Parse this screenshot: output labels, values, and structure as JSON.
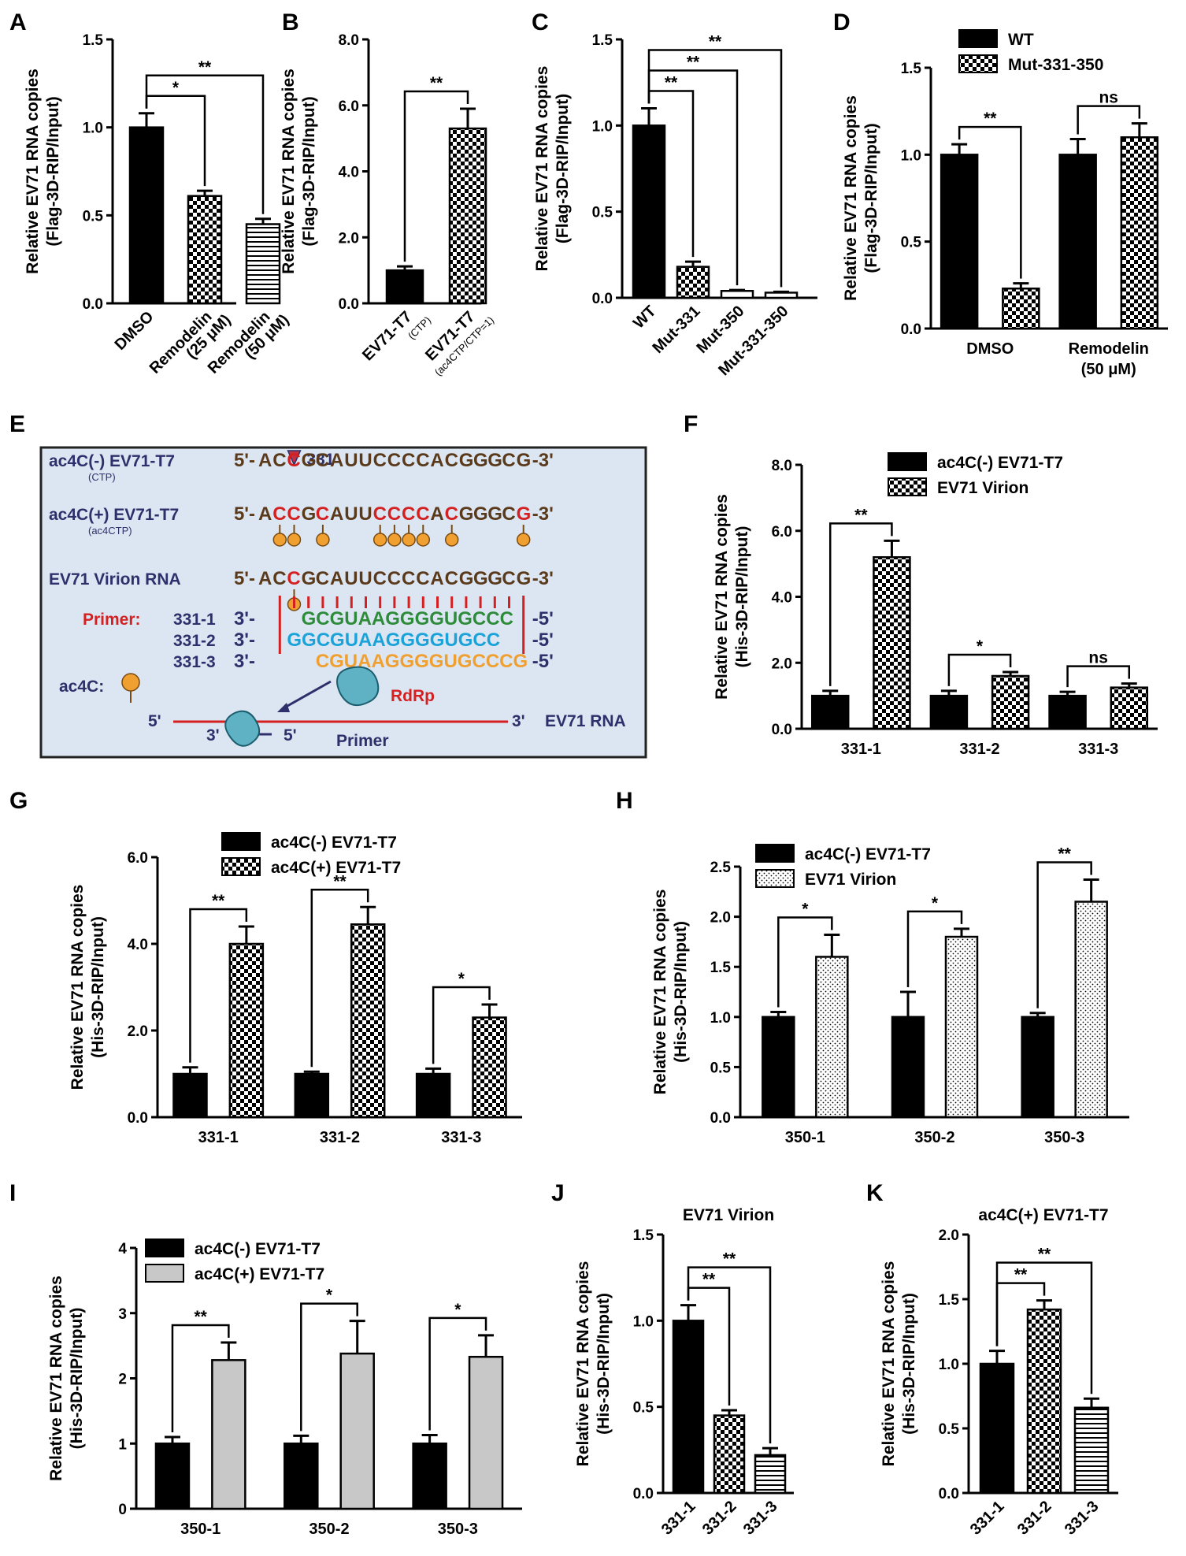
{
  "colors": {
    "solid": "#000000",
    "gray": "#c8c8c8",
    "schematic_bg": "#dbe6f2",
    "red": "#d42020",
    "green": "#2e8b3a",
    "blue": "#1ba3d9",
    "orange": "#f0a030",
    "navy": "#2f2f6b",
    "brown": "#5a3a1a"
  },
  "chart_data": [
    {
      "id": "A",
      "type": "bar",
      "ylabel": [
        "Relative EV71 RNA copies",
        "(Flag-3D-RIP/Input)"
      ],
      "ylim": [
        0,
        1.5
      ],
      "yticks": [
        "0.0",
        "0.5",
        "1.0",
        "1.5"
      ],
      "categories": [
        [
          "DMSO"
        ],
        [
          "Remodelin",
          "(25 μM)"
        ],
        [
          "Remodelin",
          "(50 μM)"
        ]
      ],
      "x_rotated": true,
      "values": [
        1.0,
        0.61,
        0.45
      ],
      "errors": [
        0.08,
        0.03,
        0.03
      ],
      "patterns": [
        "solid",
        "check",
        "hline"
      ],
      "significance": [
        {
          "from": 0,
          "to": 1,
          "label": "*"
        },
        {
          "from": 0,
          "to": 2,
          "label": "**"
        }
      ]
    },
    {
      "id": "B",
      "type": "bar",
      "ylabel": [
        "Relative EV71 RNA copies",
        "(Flag-3D-RIP/Input)"
      ],
      "ylim": [
        0,
        8
      ],
      "yticks": [
        "0.0",
        "2.0",
        "4.0",
        "6.0",
        "8.0"
      ],
      "categories": [
        [
          "EV71-T7",
          "(CTP)"
        ],
        [
          "EV71-T7",
          "(ac4CTP/CTP=1)"
        ]
      ],
      "x_rotated": true,
      "values": [
        1.0,
        5.3
      ],
      "errors": [
        0.12,
        0.6
      ],
      "patterns": [
        "solid",
        "check"
      ],
      "significance": [
        {
          "from": 0,
          "to": 1,
          "label": "**"
        }
      ]
    },
    {
      "id": "C",
      "type": "bar",
      "ylabel": [
        "Relative EV71 RNA copies",
        "(Flag-3D-RIP/Input)"
      ],
      "ylim": [
        0,
        1.5
      ],
      "yticks": [
        "0.0",
        "0.5",
        "1.0",
        "1.5"
      ],
      "categories": [
        [
          "WT"
        ],
        [
          "Mut-331"
        ],
        [
          "Mut-350"
        ],
        [
          "Mut-331-350"
        ]
      ],
      "x_rotated": true,
      "values": [
        1.0,
        0.18,
        0.04,
        0.03
      ],
      "errors": [
        0.1,
        0.03,
        0.005,
        0.005
      ],
      "patterns": [
        "solid",
        "check",
        "white",
        "white"
      ],
      "significance": [
        {
          "from": 0,
          "to": 1,
          "label": "**"
        },
        {
          "from": 0,
          "to": 2,
          "label": "**"
        },
        {
          "from": 0,
          "to": 3,
          "label": "**"
        }
      ]
    },
    {
      "id": "D",
      "type": "bar",
      "ylabel": [
        "Relative EV71 RNA copies",
        "(Flag-3D-RIP/Input)"
      ],
      "ylim": [
        0,
        1.5
      ],
      "yticks": [
        "0.0",
        "0.5",
        "1.0",
        "1.5"
      ],
      "categories": [
        [
          "DMSO"
        ],
        [
          "Remodelin",
          "(50 μM)"
        ]
      ],
      "series": [
        {
          "name": "WT",
          "pattern": "solid",
          "values": [
            1.0,
            1.0
          ],
          "errors": [
            0.06,
            0.09
          ]
        },
        {
          "name": "Mut-331-350",
          "pattern": "check",
          "values": [
            0.23,
            1.1
          ],
          "errors": [
            0.03,
            0.08
          ]
        }
      ],
      "significance": [
        {
          "group": 0,
          "label": "**"
        },
        {
          "group": 1,
          "label": "ns"
        }
      ]
    },
    {
      "id": "F",
      "type": "bar",
      "ylabel": [
        "Relative EV71 RNA copies",
        "(His-3D-RIP/Input)"
      ],
      "ylim": [
        0,
        8
      ],
      "yticks": [
        "0.0",
        "2.0",
        "4.0",
        "6.0",
        "8.0"
      ],
      "categories": [
        [
          "331-1"
        ],
        [
          "331-2"
        ],
        [
          "331-3"
        ]
      ],
      "series": [
        {
          "name": "ac4C(-) EV71-T7",
          "pattern": "solid",
          "values": [
            1.0,
            1.0,
            1.0
          ],
          "errors": [
            0.15,
            0.15,
            0.12
          ]
        },
        {
          "name": "EV71 Virion",
          "pattern": "check",
          "values": [
            5.2,
            1.6,
            1.25
          ],
          "errors": [
            0.5,
            0.12,
            0.12
          ]
        }
      ],
      "significance": [
        {
          "group": 0,
          "label": "**"
        },
        {
          "group": 1,
          "label": "*"
        },
        {
          "group": 2,
          "label": "ns"
        }
      ]
    },
    {
      "id": "G",
      "type": "bar",
      "ylabel": [
        "Relative EV71 RNA copies",
        "(His-3D-RIP/Input)"
      ],
      "ylim": [
        0,
        6
      ],
      "yticks": [
        "0.0",
        "2.0",
        "4.0",
        "6.0"
      ],
      "categories": [
        [
          "331-1"
        ],
        [
          "331-2"
        ],
        [
          "331-3"
        ]
      ],
      "series": [
        {
          "name": "ac4C(-) EV71-T7",
          "pattern": "solid",
          "values": [
            1.0,
            1.0,
            1.0
          ],
          "errors": [
            0.15,
            0.05,
            0.12
          ]
        },
        {
          "name": "ac4C(+) EV71-T7",
          "pattern": "check",
          "values": [
            4.0,
            4.45,
            2.3
          ],
          "errors": [
            0.4,
            0.4,
            0.3
          ]
        }
      ],
      "significance": [
        {
          "group": 0,
          "label": "**"
        },
        {
          "group": 1,
          "label": "**"
        },
        {
          "group": 2,
          "label": "*"
        }
      ]
    },
    {
      "id": "H",
      "type": "bar",
      "ylabel": [
        "Relative EV71 RNA copies",
        "(His-3D-RIP/Input)"
      ],
      "ylim": [
        0,
        2.5
      ],
      "yticks": [
        "0.0",
        "0.5",
        "1.0",
        "1.5",
        "2.0",
        "2.5"
      ],
      "categories": [
        [
          "350-1"
        ],
        [
          "350-2"
        ],
        [
          "350-3"
        ]
      ],
      "series": [
        {
          "name": "ac4C(-) EV71-T7",
          "pattern": "solid",
          "values": [
            1.0,
            1.0,
            1.0
          ],
          "errors": [
            0.05,
            0.25,
            0.04
          ]
        },
        {
          "name": "EV71 Virion",
          "pattern": "dots",
          "values": [
            1.6,
            1.8,
            2.15
          ],
          "errors": [
            0.22,
            0.08,
            0.22
          ]
        }
      ],
      "significance": [
        {
          "group": 0,
          "label": "*"
        },
        {
          "group": 1,
          "label": "*"
        },
        {
          "group": 2,
          "label": "**"
        }
      ]
    },
    {
      "id": "I",
      "type": "bar",
      "ylabel": [
        "Relative EV71 RNA copies",
        "(His-3D-RIP/Input)"
      ],
      "ylim": [
        0,
        4
      ],
      "yticks": [
        "0",
        "1",
        "2",
        "3",
        "4"
      ],
      "categories": [
        [
          "350-1"
        ],
        [
          "350-2"
        ],
        [
          "350-3"
        ]
      ],
      "series": [
        {
          "name": "ac4C(-) EV71-T7",
          "pattern": "solid",
          "values": [
            1.0,
            1.0,
            1.0
          ],
          "errors": [
            0.1,
            0.12,
            0.13
          ]
        },
        {
          "name": "ac4C(+) EV71-T7",
          "pattern": "gray",
          "values": [
            2.28,
            2.38,
            2.33
          ],
          "errors": [
            0.27,
            0.5,
            0.33
          ]
        }
      ],
      "significance": [
        {
          "group": 0,
          "label": "**"
        },
        {
          "group": 1,
          "label": "*"
        },
        {
          "group": 2,
          "label": "*"
        }
      ]
    },
    {
      "id": "J",
      "type": "bar",
      "title": "EV71 Virion",
      "ylabel": [
        "Relative EV71 RNA copies",
        "(His-3D-RIP/Input)"
      ],
      "ylim": [
        0,
        1.5
      ],
      "yticks": [
        "0.0",
        "0.5",
        "1.0",
        "1.5"
      ],
      "categories": [
        [
          "331-1"
        ],
        [
          "331-2"
        ],
        [
          "331-3"
        ]
      ],
      "x_rotated": true,
      "values": [
        1.0,
        0.45,
        0.22
      ],
      "errors": [
        0.09,
        0.03,
        0.04
      ],
      "patterns": [
        "solid",
        "check",
        "hline"
      ],
      "significance": [
        {
          "from": 0,
          "to": 1,
          "label": "**"
        },
        {
          "from": 0,
          "to": 2,
          "label": "**"
        }
      ]
    },
    {
      "id": "K",
      "type": "bar",
      "title": "ac4C(+) EV71-T7",
      "ylabel": [
        "Relative EV71 RNA copies",
        "(His-3D-RIP/Input)"
      ],
      "ylim": [
        0,
        2
      ],
      "yticks": [
        "0.0",
        "0.5",
        "1.0",
        "1.5",
        "2.0"
      ],
      "categories": [
        [
          "331-1"
        ],
        [
          "331-2"
        ],
        [
          "331-3"
        ]
      ],
      "x_rotated": true,
      "values": [
        1.0,
        1.42,
        0.66
      ],
      "errors": [
        0.1,
        0.07,
        0.07
      ],
      "patterns": [
        "solid",
        "check",
        "hline"
      ],
      "significance": [
        {
          "from": 0,
          "to": 1,
          "label": "**"
        },
        {
          "from": 0,
          "to": 2,
          "label": "**"
        }
      ]
    }
  ],
  "schematic": {
    "letter": "E",
    "site_label": "331",
    "rows": [
      {
        "label": "ac4C(-) EV71-T7",
        "sublabel": "(CTP)",
        "prefix": "5'-",
        "seq": "ACCGCAUUCCCCACGGGCG",
        "suffix": "-3'",
        "red": [
          2
        ],
        "balls": []
      },
      {
        "label": "ac4C(+) EV71-T7",
        "sublabel": "(ac4CTP)",
        "prefix": "5'-",
        "seq": "ACCGCAUUCCCCACGGGCG",
        "suffix": "-3'",
        "red": [
          1,
          2,
          4,
          8,
          9,
          10,
          11,
          13,
          18
        ],
        "balls": [
          1,
          2,
          4,
          8,
          9,
          10,
          11,
          13,
          18
        ]
      },
      {
        "label": "EV71 Virion RNA",
        "sublabel": "",
        "prefix": "5'-",
        "seq": "ACCGCAUUCCCCACGGGCG",
        "suffix": "-3'",
        "red": [
          2
        ],
        "balls": [
          2
        ]
      }
    ],
    "primer_label": "Primer:",
    "primers": [
      {
        "name": "331-1",
        "prefix": "3'-",
        "seq": "GCGUAAGGGGUGCCC",
        "suffix": "-5'",
        "start": 3
      },
      {
        "name": "331-2",
        "prefix": "3'-",
        "seq": "GGCGUAAGGGGUGCC",
        "suffix": "-5'",
        "start": 2
      },
      {
        "name": "331-3",
        "prefix": "3'-",
        "seq": "CGUAAGGGGUGCCCG",
        "suffix": "-5'",
        "start": 4
      }
    ],
    "legend_label": "ac4C:",
    "rdrp": "RdRp",
    "rna_5": "5'",
    "rna_3": "3'",
    "rna_label": "EV71 RNA",
    "primer_3": "3'",
    "primer_5": "5'",
    "primer_word": "Primer"
  }
}
